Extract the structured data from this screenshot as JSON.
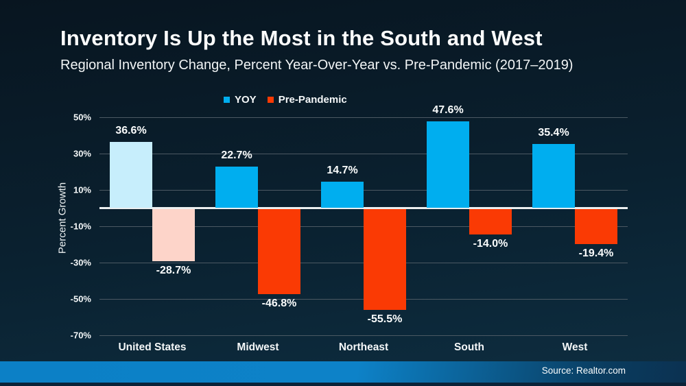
{
  "header": {
    "title": "Inventory Is Up the Most in the South and West",
    "subtitle": "Regional Inventory Change, Percent Year-Over-Year vs. Pre-Pandemic (2017–2019)"
  },
  "legend": {
    "items": [
      {
        "label": "YOY",
        "color": "#00aeef"
      },
      {
        "label": "Pre-Pandemic",
        "color": "#fa3a04"
      }
    ]
  },
  "chart_data": {
    "type": "bar",
    "title": "Inventory Is Up the Most in the South and West",
    "subtitle": "Regional Inventory Change, Percent Year-Over-Year vs. Pre-Pandemic (2017–2019)",
    "categories": [
      "United States",
      "Midwest",
      "Northeast",
      "South",
      "West"
    ],
    "series": [
      {
        "name": "YOY",
        "values": [
          36.6,
          22.7,
          14.7,
          47.6,
          35.4
        ],
        "labels": [
          "36.6%",
          "22.7%",
          "14.7%",
          "47.6%",
          "35.4%"
        ],
        "color": "#00aeef",
        "bar_colors": [
          "#c7eefc",
          "#00aeef",
          "#00aeef",
          "#00aeef",
          "#00aeef"
        ]
      },
      {
        "name": "Pre-Pandemic",
        "values": [
          -28.7,
          -46.8,
          -55.5,
          -14.0,
          -19.4
        ],
        "labels": [
          "-28.7%",
          "-46.8%",
          "-55.5%",
          "-14.0%",
          "-19.4%"
        ],
        "color": "#fa3a04",
        "bar_colors": [
          "#fdd4c9",
          "#fa3a04",
          "#fa3a04",
          "#fa3a04",
          "#fa3a04"
        ]
      }
    ],
    "ylabel": "Percent Growth",
    "xlabel": "",
    "ylim": [
      -70,
      50
    ],
    "yticks": {
      "values": [
        50,
        30,
        10,
        -10,
        -30,
        -50,
        -70
      ],
      "labels": [
        "50%",
        "30%",
        "10%",
        "-10%",
        "-30%",
        "-50%",
        "-70%"
      ]
    },
    "grid": true,
    "legend_position": "top-center",
    "zero_baseline": true,
    "highlight": "United States bars shown in muted light blue / light pink"
  },
  "footer": {
    "source": "Source: Realtor.com"
  }
}
